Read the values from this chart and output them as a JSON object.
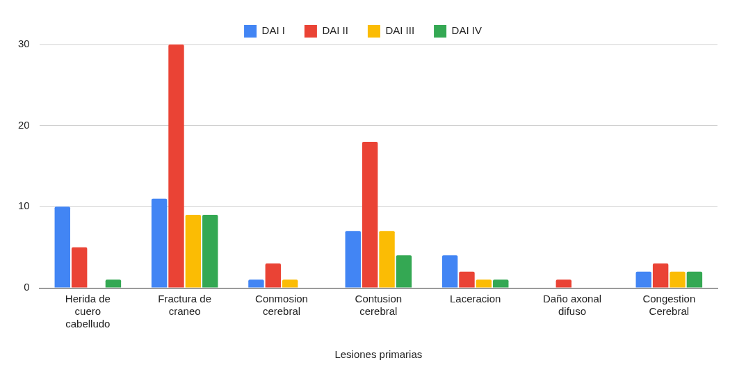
{
  "chart_data": {
    "type": "bar",
    "xlabel": "Lesiones primarias",
    "categories": [
      "Herida de cuero cabelludo",
      "Fractura de craneo",
      "Conmosion cerebral",
      "Contusion cerebral",
      "Laceracion",
      "Daño axonal difuso",
      "Congestion Cerebral"
    ],
    "series": [
      {
        "name": "DAI I",
        "color": "#4285f4",
        "values": [
          10,
          11,
          1,
          7,
          4,
          0,
          2
        ]
      },
      {
        "name": "DAI II",
        "color": "#ea4335",
        "values": [
          5,
          30,
          3,
          18,
          2,
          1,
          3
        ]
      },
      {
        "name": "DAI III",
        "color": "#fbbc04",
        "values": [
          0,
          9,
          1,
          7,
          1,
          0,
          2
        ]
      },
      {
        "name": "DAI IV",
        "color": "#34a853",
        "values": [
          1,
          9,
          0,
          4,
          1,
          0,
          2
        ]
      }
    ],
    "ylim": [
      0,
      30
    ],
    "yticks": [
      0,
      10,
      20,
      30
    ],
    "grid": "y",
    "legend": "top"
  }
}
